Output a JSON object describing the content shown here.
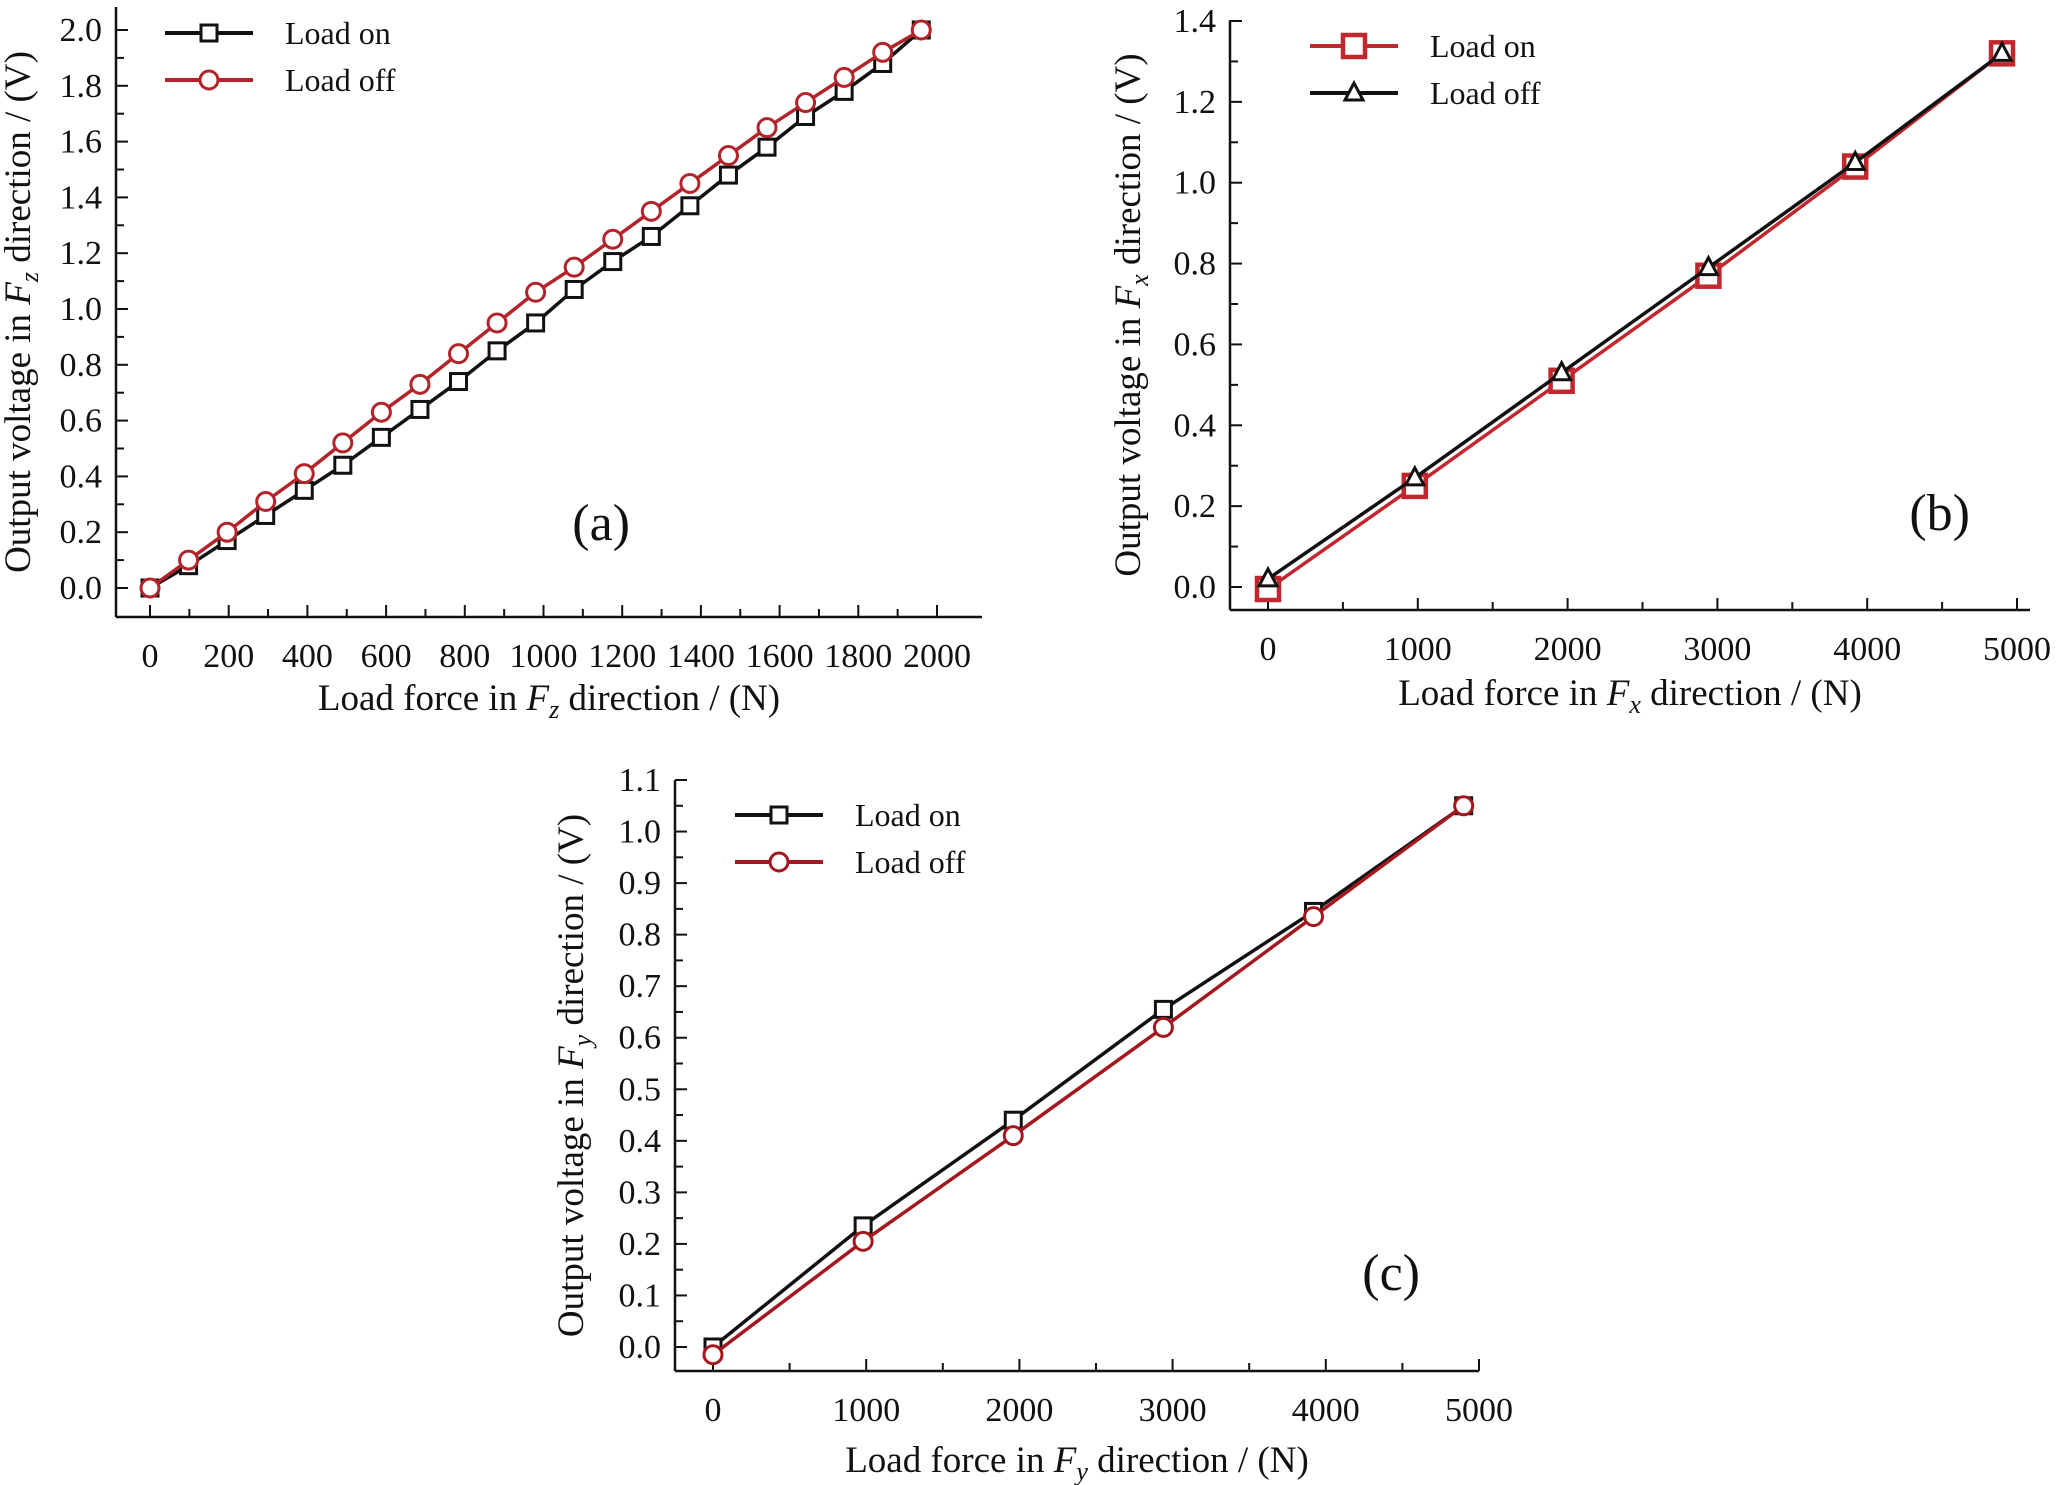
{
  "chart_data": [
    {
      "type": "line",
      "panel_label": "(a)",
      "xlabel": {
        "pre": "Load force in ",
        "var": "F",
        "sub": "z",
        "post": " direction / (N)"
      },
      "ylabel": {
        "pre": "Output voltage in ",
        "var": "F",
        "sub": "z",
        "post": " direction / (V)"
      },
      "xlim": [
        0,
        2000
      ],
      "ylim": [
        0,
        2.0
      ],
      "xticks": [
        0,
        200,
        400,
        600,
        800,
        1000,
        1200,
        1400,
        1600,
        1800,
        2000
      ],
      "xtick_labels": [
        "0",
        "200",
        "400",
        "600",
        "800",
        "1000",
        "1200",
        "1400",
        "1600",
        "1800",
        "2000"
      ],
      "yticks": [
        0,
        0.2,
        0.4,
        0.6,
        0.8,
        1.0,
        1.2,
        1.4,
        1.6,
        1.8,
        2.0
      ],
      "ytick_labels": [
        "0.0",
        "0.2",
        "0.4",
        "0.6",
        "0.8",
        "1.0",
        "1.2",
        "1.4",
        "1.6",
        "1.8",
        "2.0"
      ],
      "x_minor_step": 100,
      "y_minor_step": 0.1,
      "legend_position": "top-left",
      "x": [
        0,
        98,
        196,
        294,
        392,
        490,
        588,
        686,
        784,
        882,
        980,
        1078,
        1176,
        1274,
        1372,
        1470,
        1568,
        1666,
        1764,
        1862,
        1960
      ],
      "series": [
        {
          "name": "Load on",
          "color": "#111111",
          "marker": "square",
          "values": [
            0,
            0.08,
            0.17,
            0.26,
            0.35,
            0.44,
            0.54,
            0.64,
            0.74,
            0.85,
            0.95,
            1.07,
            1.17,
            1.26,
            1.37,
            1.48,
            1.58,
            1.69,
            1.78,
            1.88,
            2.0
          ]
        },
        {
          "name": "Load off",
          "color": "#b3242a",
          "marker": "circle",
          "values": [
            0,
            0.1,
            0.2,
            0.31,
            0.41,
            0.52,
            0.63,
            0.73,
            0.84,
            0.95,
            1.06,
            1.15,
            1.25,
            1.35,
            1.45,
            1.55,
            1.65,
            1.74,
            1.83,
            1.92,
            2.0
          ]
        }
      ]
    },
    {
      "type": "line",
      "panel_label": "(b)",
      "xlabel": {
        "pre": "Load force in ",
        "var": "F",
        "sub": "x",
        "post": " direction / (N)"
      },
      "ylabel": {
        "pre": "Output voltage in ",
        "var": "F",
        "sub": "x",
        "post": " direction / (V)"
      },
      "xlim": [
        0,
        5000
      ],
      "ylim": [
        0,
        1.4
      ],
      "xticks": [
        0,
        1000,
        2000,
        3000,
        4000,
        5000
      ],
      "xtick_labels": [
        "0",
        "1000",
        "2000",
        "3000",
        "4000",
        "5000"
      ],
      "yticks": [
        0,
        0.2,
        0.4,
        0.6,
        0.8,
        1.0,
        1.2,
        1.4
      ],
      "ytick_labels": [
        "0.0",
        "0.2",
        "0.4",
        "0.6",
        "0.8",
        "1.0",
        "1.2",
        "1.4"
      ],
      "x_minor_step": 500,
      "y_minor_step": 0.1,
      "legend_position": "top-left",
      "x": [
        0,
        980,
        1960,
        2940,
        3920,
        4900
      ],
      "series": [
        {
          "name": "Load on",
          "color": "#c0282e",
          "marker": "square-large",
          "values": [
            -0.005,
            0.25,
            0.51,
            0.77,
            1.04,
            1.32
          ]
        },
        {
          "name": "Load off",
          "color": "#111111",
          "marker": "triangle",
          "values": [
            0.02,
            0.27,
            0.53,
            0.79,
            1.05,
            1.32
          ]
        }
      ]
    },
    {
      "type": "line",
      "panel_label": "(c)",
      "xlabel": {
        "pre": "Load force in ",
        "var": "F",
        "sub": "y",
        "post": " direction / (N)"
      },
      "ylabel": {
        "pre": "Output voltage in ",
        "var": "F",
        "sub": "y",
        "post": " direction / (V)"
      },
      "xlim": [
        0,
        5000
      ],
      "ylim": [
        0,
        1.1
      ],
      "xticks": [
        0,
        1000,
        2000,
        3000,
        4000,
        5000
      ],
      "xtick_labels": [
        "0",
        "1000",
        "2000",
        "3000",
        "4000",
        "5000"
      ],
      "yticks": [
        0,
        0.1,
        0.2,
        0.3,
        0.4,
        0.5,
        0.6,
        0.7,
        0.8,
        0.9,
        1.0,
        1.1
      ],
      "ytick_labels": [
        "0.0",
        "0.1",
        "0.2",
        "0.3",
        "0.4",
        "0.5",
        "0.6",
        "0.7",
        "0.8",
        "0.9",
        "1.0",
        "1.1"
      ],
      "x_minor_step": 500,
      "y_minor_step": 0.05,
      "legend_position": "top-left",
      "x": [
        0,
        980,
        1960,
        2940,
        3920,
        4900
      ],
      "series": [
        {
          "name": "Load on",
          "color": "#111111",
          "marker": "square",
          "values": [
            0,
            0.235,
            0.44,
            0.655,
            0.845,
            1.05
          ]
        },
        {
          "name": "Load off",
          "color": "#a3181e",
          "marker": "circle",
          "values": [
            -0.015,
            0.205,
            0.41,
            0.62,
            0.835,
            1.05
          ]
        }
      ]
    }
  ]
}
